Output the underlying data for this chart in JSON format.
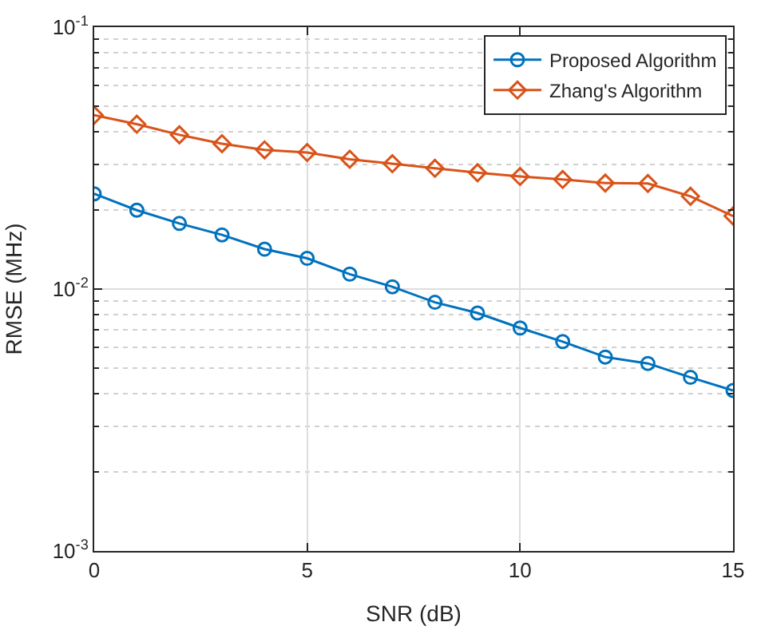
{
  "chart_data": {
    "type": "line",
    "xlabel": "SNR (dB)",
    "ylabel": "RMSE (MHz)",
    "x": [
      0,
      1,
      2,
      3,
      4,
      5,
      6,
      7,
      8,
      9,
      10,
      11,
      12,
      13,
      14,
      15
    ],
    "series": [
      {
        "name": "Proposed Algorithm",
        "color": "#0072bd",
        "marker": "circle",
        "values": [
          0.0231,
          0.02,
          0.0178,
          0.0161,
          0.0142,
          0.0131,
          0.0114,
          0.0102,
          0.0089,
          0.0081,
          0.0071,
          0.0063,
          0.0055,
          0.0052,
          0.0046,
          0.0041
        ]
      },
      {
        "name": "Zhang's Algorithm",
        "color": "#d95319",
        "marker": "diamond",
        "values": [
          0.0461,
          0.0426,
          0.0388,
          0.0359,
          0.034,
          0.0332,
          0.0313,
          0.0301,
          0.0289,
          0.0278,
          0.0269,
          0.0262,
          0.0254,
          0.0253,
          0.0226,
          0.019
        ]
      }
    ],
    "log": "y",
    "xlim": [
      0,
      15
    ],
    "xticks": [
      0,
      5,
      10,
      15
    ],
    "ylim": [
      0.001,
      0.1
    ],
    "yticks": [
      {
        "value": 0.001,
        "label": "10$^{-3}$"
      },
      {
        "value": 0.01,
        "label": "10$^{-2}$"
      },
      {
        "value": 0.1,
        "label": "10$^{-1}$"
      }
    ],
    "grid": true,
    "legend": "top right",
    "line_style": "solid"
  }
}
